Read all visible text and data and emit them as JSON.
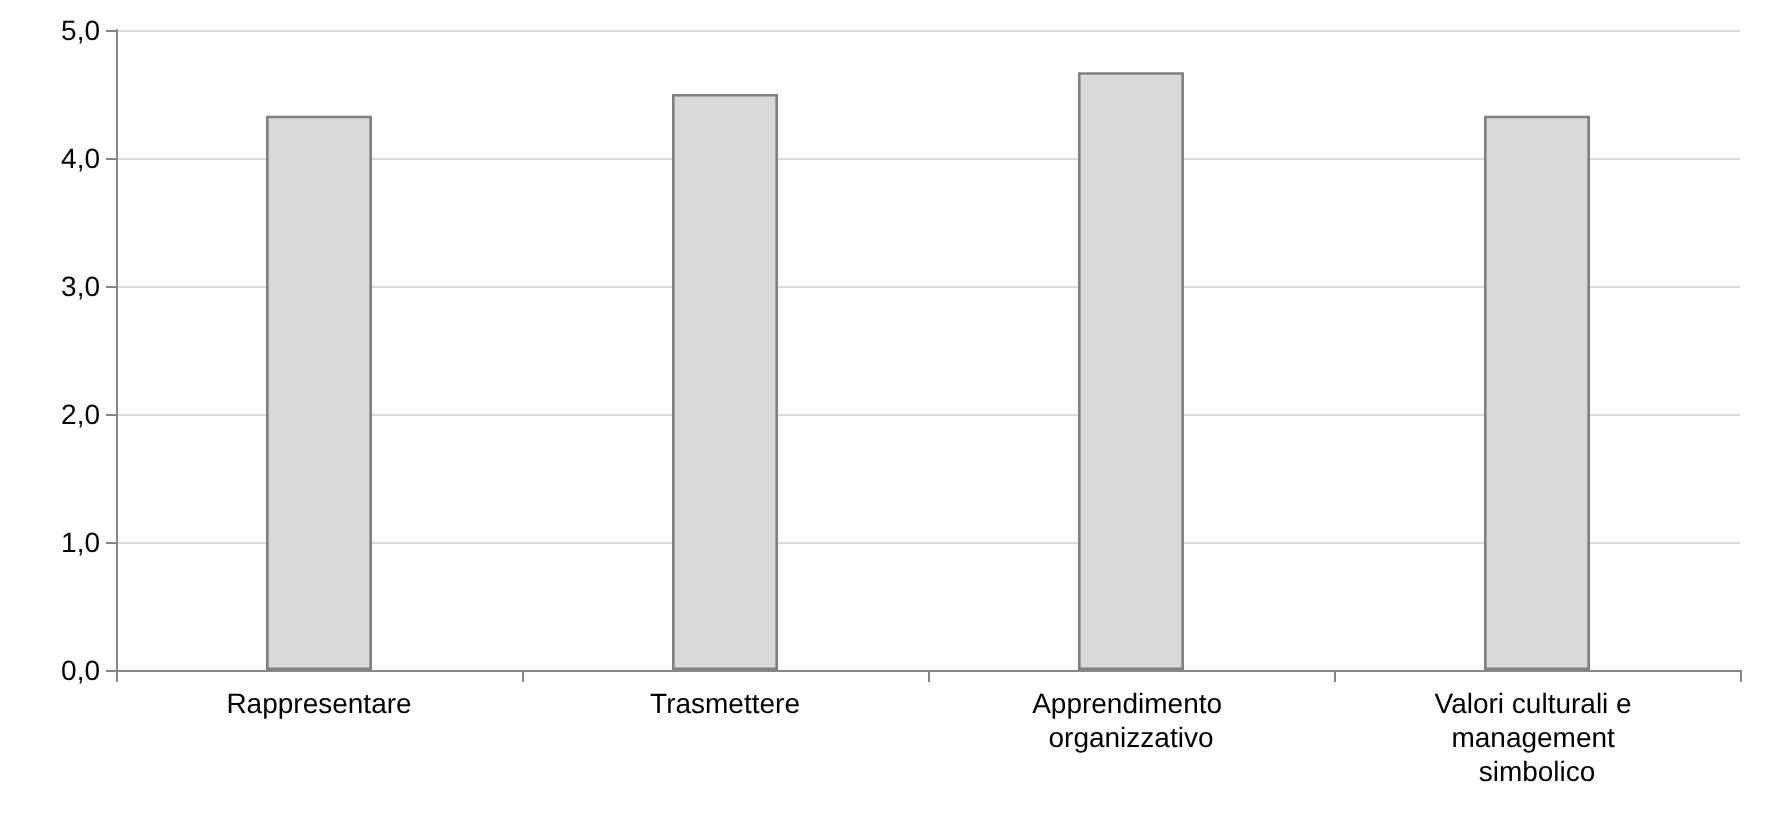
{
  "chart_data": {
    "type": "bar",
    "categories": [
      "Rappresentare",
      "Trasmettere",
      "Apprendimento organizzativo",
      "Valori culturali e management simbolico"
    ],
    "values": [
      4.33,
      4.5,
      4.67,
      4.33
    ],
    "color": "#d9d9d9",
    "ylim": [
      0,
      5
    ],
    "yticks": [
      {
        "value": 0,
        "label": "0,0"
      },
      {
        "value": 1,
        "label": "1,0"
      },
      {
        "value": 2,
        "label": "2,0"
      },
      {
        "value": 3,
        "label": "3,0"
      },
      {
        "value": 4,
        "label": "4,0"
      },
      {
        "value": 5,
        "label": "5,0"
      }
    ],
    "grid": "y"
  }
}
